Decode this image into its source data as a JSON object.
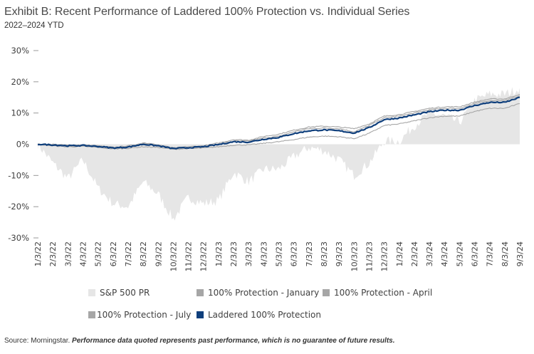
{
  "header": {
    "title": "Exhibit B: Recent Performance of Laddered 100% Protection vs. Individual Series",
    "subtitle": "2022–2024 YTD"
  },
  "footer": {
    "source": "Source: Morningstar.",
    "disclaimer": "Performance data quoted represents past performance, which is no guarantee of future results."
  },
  "colors": {
    "sp500": "#e6e6e6",
    "protection_series": "#a6a6a6",
    "laddered": "#0f3f7c",
    "axis_text": "#404040"
  },
  "chart_data": {
    "type": "line",
    "title": "Exhibit B: Recent Performance of Laddered 100% Protection vs. Individual Series",
    "subtitle": "2022–2024 YTD",
    "xlabel": "",
    "ylabel": "",
    "ylim": [
      -30,
      30
    ],
    "yticks": [
      30,
      20,
      10,
      0,
      -10,
      -20,
      -30
    ],
    "ytick_labels": [
      "30%",
      "20%",
      "10%",
      "0%",
      "-10%",
      "-20%",
      "-30%"
    ],
    "grid": false,
    "legend_position": "bottom",
    "x": [
      "1/3/22",
      "2/3/22",
      "3/3/22",
      "4/3/22",
      "5/3/22",
      "6/3/22",
      "7/3/22",
      "8/3/22",
      "9/3/22",
      "10/3/22",
      "11/3/22",
      "12/3/22",
      "1/3/23",
      "2/3/23",
      "3/3/23",
      "4/3/23",
      "5/3/23",
      "6/3/23",
      "7/3/23",
      "8/3/23",
      "9/3/23",
      "10/3/23",
      "11/3/23",
      "12/3/23",
      "1/3/24",
      "2/3/24",
      "3/3/24",
      "4/3/24",
      "5/3/24",
      "6/3/24",
      "7/3/24",
      "8/3/24",
      "9/3/24"
    ],
    "series": [
      {
        "name": "S&P 500 PR",
        "style": "area",
        "values": [
          0,
          -6,
          -11,
          -5,
          -14,
          -19,
          -20,
          -12,
          -16,
          -24,
          -17,
          -19,
          -18,
          -9,
          -12,
          -8,
          -8,
          -4,
          -1,
          -2,
          -5,
          -10,
          -6,
          1,
          1,
          6,
          10,
          9,
          7,
          14,
          16,
          16,
          18
        ]
      },
      {
        "name": "100% Protection - January",
        "style": "line",
        "values": [
          0,
          0,
          -0.3,
          -0.2,
          -0.5,
          -1,
          -0.5,
          0.3,
          -0.3,
          -1.5,
          -1,
          -0.8,
          0,
          1,
          1,
          2,
          2.5,
          4,
          5,
          5.2,
          5,
          4,
          6,
          8.5,
          9,
          10,
          11,
          11.5,
          11.5,
          13,
          14,
          14,
          15.5
        ]
      },
      {
        "name": "100% Protection - April",
        "style": "line",
        "values": [
          0,
          -0.3,
          -0.6,
          -0.5,
          -0.8,
          -1.3,
          -0.9,
          0.5,
          -0.2,
          -1.2,
          -0.8,
          -0.5,
          0.4,
          1.5,
          1.3,
          2.5,
          3.2,
          4.5,
          5.5,
          5.8,
          5.5,
          5,
          6.5,
          9,
          9.5,
          10.5,
          11.5,
          12,
          12,
          13.5,
          14.5,
          14.5,
          16
        ]
      },
      {
        "name": "100% Protection - July",
        "style": "line",
        "values": [
          0,
          -0.5,
          -0.8,
          -0.7,
          -1,
          -1.5,
          -1.3,
          -0.8,
          -1,
          -1.6,
          -1.4,
          -1.2,
          -0.8,
          -0.3,
          -0.2,
          0.3,
          0.8,
          1.5,
          2.3,
          2.6,
          2.4,
          1.8,
          3.5,
          6,
          6.5,
          7.5,
          8.5,
          9,
          9,
          10.5,
          11.5,
          11.5,
          13
        ]
      },
      {
        "name": "Laddered 100% Protection",
        "style": "line",
        "values": [
          0,
          -0.2,
          -0.5,
          -0.4,
          -0.7,
          -1.2,
          -0.9,
          0,
          -0.5,
          -1.4,
          -1.1,
          -0.8,
          -0.1,
          0.8,
          0.7,
          1.6,
          2.2,
          3.4,
          4.3,
          4.6,
          4.3,
          3.6,
          5.3,
          7.9,
          8.4,
          9.4,
          10.4,
          10.9,
          10.9,
          12.4,
          13.4,
          13.4,
          15
        ]
      }
    ]
  },
  "legend": [
    {
      "label": "S&P 500 PR",
      "color_key": "sp500"
    },
    {
      "label": "100% Protection - January",
      "color_key": "protection_series"
    },
    {
      "label": "100% Protection - April",
      "color_key": "protection_series"
    },
    {
      "label": "100% Protection - July",
      "color_key": "protection_series"
    },
    {
      "label": "Laddered 100% Protection",
      "color_key": "laddered"
    }
  ]
}
